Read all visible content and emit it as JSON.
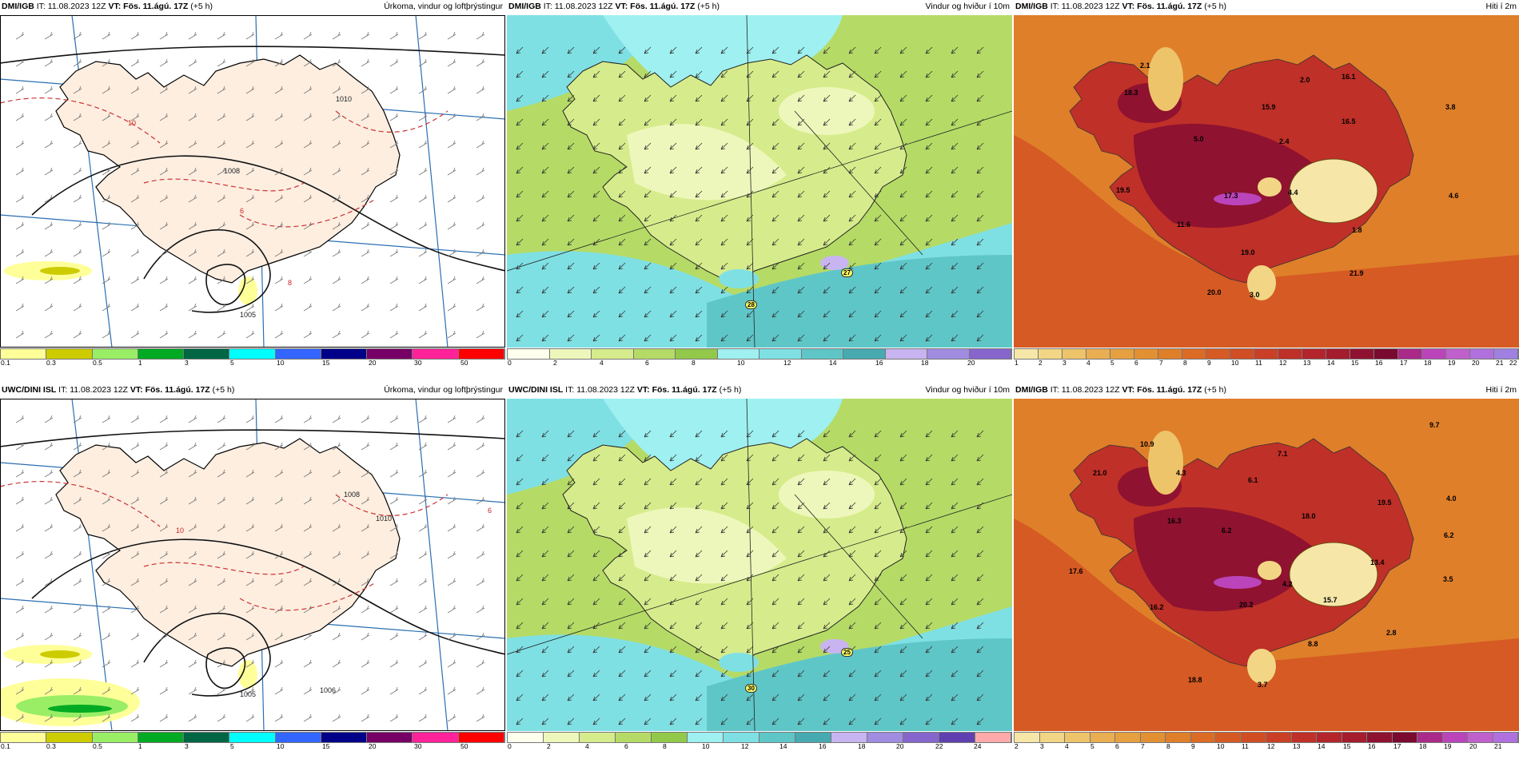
{
  "panels": [
    {
      "model": "DMI/IGB",
      "it_label": "IT:",
      "it_value": "11.08.2023 12Z",
      "vt_label": "VT:",
      "vt_value": "Fös. 11.ágú. 17Z",
      "step": "(+5 h)",
      "title": "Úrkoma, vindur og loftþrýstingur",
      "type": "precip",
      "colors": [
        "#ffff99",
        "#cccc00",
        "#99ee66",
        "#00aa22",
        "#006644",
        "#00ffff",
        "#3366ff",
        "#000088",
        "#770066",
        "#ff2299",
        "#ff0000"
      ],
      "ticks": [
        "0.1",
        "0.3",
        "0.5",
        "1",
        "3",
        "5",
        "10",
        "15",
        "20",
        "30",
        "50"
      ],
      "labels": [
        "1010",
        "1008",
        "1005",
        "10",
        "8",
        "6"
      ]
    },
    {
      "model": "DMI/IGB",
      "it_label": "IT:",
      "it_value": "11.08.2023 12Z",
      "vt_label": "VT:",
      "vt_value": "Fös. 11.ágú. 17Z",
      "step": "(+5 h)",
      "title": "Vindur og hviður í 10m",
      "type": "wind",
      "colors": [
        "#ffffee",
        "#eef7bb",
        "#d6ec8c",
        "#b5db66",
        "#93c94a",
        "#9ff0f0",
        "#7fe0e4",
        "#5fc6c8",
        "#46aab0",
        "#c8b4f0",
        "#a08ce0",
        "#8666cc"
      ],
      "ticks": [
        "0",
        "2",
        "4",
        "6",
        "8",
        "10",
        "12",
        "14",
        "16",
        "18",
        "20"
      ],
      "labels": [
        "27",
        "28"
      ]
    },
    {
      "model": "DMI/IGB",
      "it_label": "IT:",
      "it_value": "11.08.2023 12Z",
      "vt_label": "VT:",
      "vt_value": "Fös. 11.ágú. 17Z",
      "step": "(+5 h)",
      "title": "Hiti í 2m",
      "type": "temp",
      "colors": [
        "#f6e7a8",
        "#f2d685",
        "#eec46a",
        "#e9ae52",
        "#e6a040",
        "#e39033",
        "#df7f2a",
        "#db6b25",
        "#d65a23",
        "#d14d24",
        "#c94026",
        "#bf3028",
        "#b3252b",
        "#a41c2d",
        "#8f1230",
        "#7a0a2f",
        "#aa2a8a",
        "#bb44bb",
        "#c060cc",
        "#b070dd",
        "#a080e0"
      ],
      "ticks": [
        "1",
        "2",
        "3",
        "4",
        "5",
        "6",
        "7",
        "8",
        "9",
        "10",
        "11",
        "12",
        "13",
        "14",
        "15",
        "16",
        "17",
        "18",
        "19",
        "20",
        "21",
        "22"
      ],
      "labels": [
        "2.1",
        "16.1",
        "18.3",
        "2.0",
        "15.9",
        "16.5",
        "3.8",
        "5.0",
        "2.4",
        "19.5",
        "17.3",
        "4.4",
        "4.6",
        "11.6",
        "1.8",
        "19.0",
        "21.9",
        "20.0",
        "3.0"
      ]
    },
    {
      "model": "UWC/DINI ISL",
      "it_label": "IT:",
      "it_value": "11.08.2023 12Z",
      "vt_label": "VT:",
      "vt_value": "Fös. 11.ágú. 17Z",
      "step": "(+5 h)",
      "title": "Úrkoma, vindur og loftþrýstingur",
      "type": "precip",
      "colors": [
        "#ffff99",
        "#cccc00",
        "#99ee66",
        "#00aa22",
        "#006644",
        "#00ffff",
        "#3366ff",
        "#000088",
        "#770066",
        "#ff2299",
        "#ff0000"
      ],
      "ticks": [
        "0.1",
        "0.3",
        "0.5",
        "1",
        "3",
        "5",
        "10",
        "15",
        "20",
        "30",
        "50"
      ],
      "labels": [
        "1010",
        "1008",
        "1005",
        "1006",
        "10",
        "6"
      ]
    },
    {
      "model": "UWC/DINI ISL",
      "it_label": "IT:",
      "it_value": "11.08.2023 12Z",
      "vt_label": "VT:",
      "vt_value": "Fös. 11.ágú. 17Z",
      "step": "(+5 h)",
      "title": "Vindur og hviður í 10m",
      "type": "wind",
      "colors": [
        "#ffffee",
        "#eef7bb",
        "#d6ec8c",
        "#b5db66",
        "#93c94a",
        "#9ff0f0",
        "#7fe0e4",
        "#5fc6c8",
        "#46aab0",
        "#c8b4f0",
        "#a08ce0",
        "#8666cc",
        "#6040b0",
        "#ffaaaa"
      ],
      "ticks": [
        "0",
        "2",
        "4",
        "6",
        "8",
        "10",
        "12",
        "14",
        "16",
        "18",
        "20",
        "22",
        "24"
      ],
      "labels": [
        "25",
        "30"
      ]
    },
    {
      "model": "DMI/IGB",
      "it_label": "IT:",
      "it_value": "11.08.2023 12Z",
      "vt_label": "VT:",
      "vt_value": "Fös. 11.ágú. 17Z",
      "step": "(+5 h)",
      "title": "Hiti í 2m",
      "type": "temp",
      "colors": [
        "#f6e7a8",
        "#f2d685",
        "#eec46a",
        "#e9ae52",
        "#e6a040",
        "#e39033",
        "#df7f2a",
        "#db6b25",
        "#d65a23",
        "#d14d24",
        "#c94026",
        "#bf3028",
        "#b3252b",
        "#a41c2d",
        "#8f1230",
        "#7a0a2f",
        "#aa2a8a",
        "#bb44bb",
        "#c060cc",
        "#b070dd"
      ],
      "ticks": [
        "2",
        "3",
        "4",
        "5",
        "6",
        "7",
        "8",
        "9",
        "10",
        "11",
        "12",
        "13",
        "14",
        "15",
        "16",
        "17",
        "18",
        "19",
        "20",
        "21"
      ],
      "labels": [
        "9.7",
        "10.9",
        "21.0",
        "4.3",
        "7.1",
        "6.1",
        "19.5",
        "4.0",
        "16.3",
        "6.2",
        "18.0",
        "6.2",
        "17.6",
        "13.4",
        "3.5",
        "4.2",
        "15.7",
        "16.2",
        "20.2",
        "2.8",
        "8.8",
        "18.8",
        "3.7"
      ]
    }
  ]
}
